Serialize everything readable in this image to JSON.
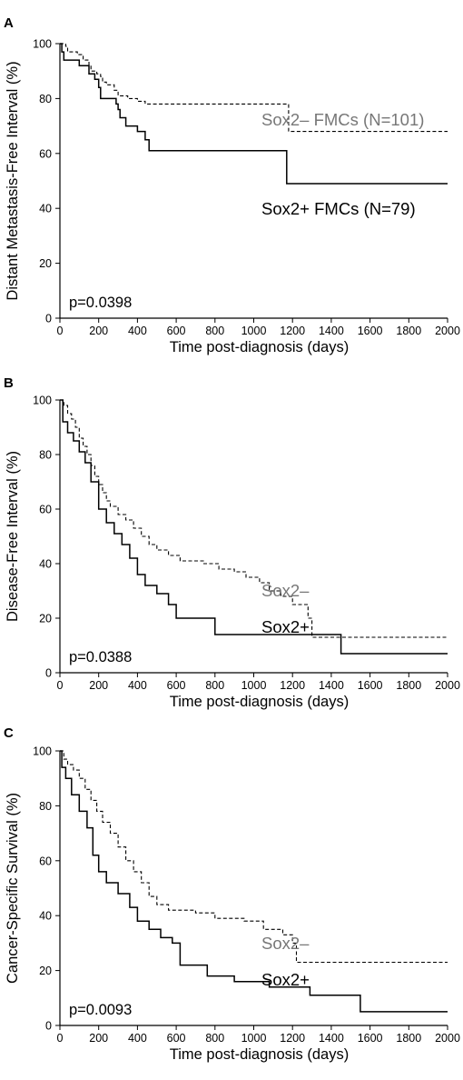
{
  "chart_data": [
    {
      "panel": "A",
      "type": "line",
      "step": true,
      "ylabel": "Distant Metastasis-Free Interval (%)",
      "xlabel": "Time post-diagnosis (days)",
      "xlim": [
        0,
        2000
      ],
      "ylim": [
        0,
        100
      ],
      "xticks": [
        0,
        200,
        400,
        600,
        800,
        1000,
        1200,
        1400,
        1600,
        1800,
        2000
      ],
      "yticks": [
        0,
        20,
        40,
        60,
        80,
        100
      ],
      "annotation": "p=0.0398",
      "series": [
        {
          "name": "Sox2– FMCs (N=101)",
          "style": "dashed",
          "label_color": "#777777",
          "points": [
            [
              0,
              100
            ],
            [
              30,
              99
            ],
            [
              40,
              97
            ],
            [
              90,
              96
            ],
            [
              120,
              94
            ],
            [
              150,
              92
            ],
            [
              160,
              90
            ],
            [
              190,
              89
            ],
            [
              210,
              88
            ],
            [
              220,
              86
            ],
            [
              240,
              85
            ],
            [
              280,
              83
            ],
            [
              300,
              81
            ],
            [
              350,
              80
            ],
            [
              400,
              79
            ],
            [
              440,
              78
            ],
            [
              1180,
              78
            ],
            [
              1180,
              68
            ],
            [
              2000,
              68
            ]
          ]
        },
        {
          "name": "Sox2+ FMCs (N=79)",
          "style": "solid",
          "label_color": "#000000",
          "points": [
            [
              0,
              100
            ],
            [
              10,
              97
            ],
            [
              20,
              94
            ],
            [
              100,
              92
            ],
            [
              150,
              89
            ],
            [
              180,
              87
            ],
            [
              200,
              84
            ],
            [
              210,
              80
            ],
            [
              280,
              80
            ],
            [
              290,
              78
            ],
            [
              300,
              76
            ],
            [
              310,
              73
            ],
            [
              340,
              70
            ],
            [
              400,
              68
            ],
            [
              440,
              65
            ],
            [
              460,
              61
            ],
            [
              1170,
              61
            ],
            [
              1170,
              49
            ],
            [
              2000,
              49
            ]
          ]
        }
      ]
    },
    {
      "panel": "B",
      "type": "line",
      "step": true,
      "ylabel": "Disease-Free Interval (%)",
      "xlabel": "Time post-diagnosis (days)",
      "xlim": [
        0,
        2000
      ],
      "ylim": [
        0,
        100
      ],
      "xticks": [
        0,
        200,
        400,
        600,
        800,
        1000,
        1200,
        1400,
        1600,
        1800,
        2000
      ],
      "yticks": [
        0,
        20,
        40,
        60,
        80,
        100
      ],
      "annotation": "p=0.0388",
      "series": [
        {
          "name": "Sox2–",
          "style": "dashed",
          "label_color": "#777777",
          "points": [
            [
              0,
              100
            ],
            [
              20,
              98
            ],
            [
              40,
              95
            ],
            [
              60,
              93
            ],
            [
              80,
              90
            ],
            [
              100,
              86
            ],
            [
              120,
              83
            ],
            [
              140,
              80
            ],
            [
              160,
              76
            ],
            [
              180,
              72
            ],
            [
              200,
              69
            ],
            [
              220,
              66
            ],
            [
              240,
              63
            ],
            [
              260,
              61
            ],
            [
              300,
              58
            ],
            [
              340,
              56
            ],
            [
              380,
              53
            ],
            [
              420,
              50
            ],
            [
              460,
              47
            ],
            [
              500,
              45
            ],
            [
              560,
              43
            ],
            [
              620,
              41
            ],
            [
              740,
              40
            ],
            [
              820,
              38
            ],
            [
              900,
              37
            ],
            [
              960,
              35
            ],
            [
              1030,
              33
            ],
            [
              1080,
              30
            ],
            [
              1140,
              28
            ],
            [
              1200,
              25
            ],
            [
              1280,
              20
            ],
            [
              1300,
              13
            ],
            [
              2000,
              13
            ]
          ]
        },
        {
          "name": "Sox2+",
          "style": "solid",
          "label_color": "#000000",
          "points": [
            [
              0,
              100
            ],
            [
              15,
              92
            ],
            [
              40,
              88
            ],
            [
              70,
              85
            ],
            [
              100,
              81
            ],
            [
              130,
              77
            ],
            [
              160,
              70
            ],
            [
              200,
              60
            ],
            [
              240,
              55
            ],
            [
              280,
              51
            ],
            [
              320,
              47
            ],
            [
              360,
              42
            ],
            [
              400,
              36
            ],
            [
              440,
              32
            ],
            [
              500,
              29
            ],
            [
              560,
              25
            ],
            [
              600,
              20
            ],
            [
              700,
              20
            ],
            [
              800,
              14
            ],
            [
              1450,
              14
            ],
            [
              1450,
              7
            ],
            [
              2000,
              7
            ]
          ]
        }
      ]
    },
    {
      "panel": "C",
      "type": "line",
      "step": true,
      "ylabel": "Cancer-Specific Survival (%)",
      "xlabel": "Time post-diagnosis (days)",
      "xlim": [
        0,
        2000
      ],
      "ylim": [
        0,
        100
      ],
      "xticks": [
        0,
        200,
        400,
        600,
        800,
        1000,
        1200,
        1400,
        1600,
        1800,
        2000
      ],
      "yticks": [
        0,
        20,
        40,
        60,
        80,
        100
      ],
      "annotation": "p=0.0093",
      "series": [
        {
          "name": "Sox2–",
          "style": "dashed",
          "label_color": "#777777",
          "points": [
            [
              0,
              100
            ],
            [
              20,
              97
            ],
            [
              40,
              95
            ],
            [
              70,
              93
            ],
            [
              100,
              90
            ],
            [
              130,
              86
            ],
            [
              160,
              82
            ],
            [
              190,
              78
            ],
            [
              220,
              74
            ],
            [
              260,
              70
            ],
            [
              300,
              65
            ],
            [
              340,
              60
            ],
            [
              380,
              56
            ],
            [
              420,
              52
            ],
            [
              460,
              47
            ],
            [
              500,
              44
            ],
            [
              560,
              42
            ],
            [
              700,
              41
            ],
            [
              800,
              39
            ],
            [
              950,
              38
            ],
            [
              1050,
              35
            ],
            [
              1150,
              33
            ],
            [
              1200,
              30
            ],
            [
              1220,
              23
            ],
            [
              2000,
              23
            ]
          ]
        },
        {
          "name": "Sox2+",
          "style": "solid",
          "label_color": "#000000",
          "points": [
            [
              0,
              100
            ],
            [
              10,
              94
            ],
            [
              30,
              90
            ],
            [
              60,
              84
            ],
            [
              100,
              78
            ],
            [
              140,
              72
            ],
            [
              170,
              62
            ],
            [
              200,
              56
            ],
            [
              240,
              52
            ],
            [
              300,
              48
            ],
            [
              360,
              43
            ],
            [
              400,
              38
            ],
            [
              460,
              35
            ],
            [
              520,
              32
            ],
            [
              580,
              30
            ],
            [
              620,
              22
            ],
            [
              700,
              22
            ],
            [
              760,
              18
            ],
            [
              900,
              16
            ],
            [
              1080,
              14
            ],
            [
              1290,
              11
            ],
            [
              1550,
              5
            ],
            [
              2000,
              5
            ]
          ]
        }
      ]
    }
  ]
}
